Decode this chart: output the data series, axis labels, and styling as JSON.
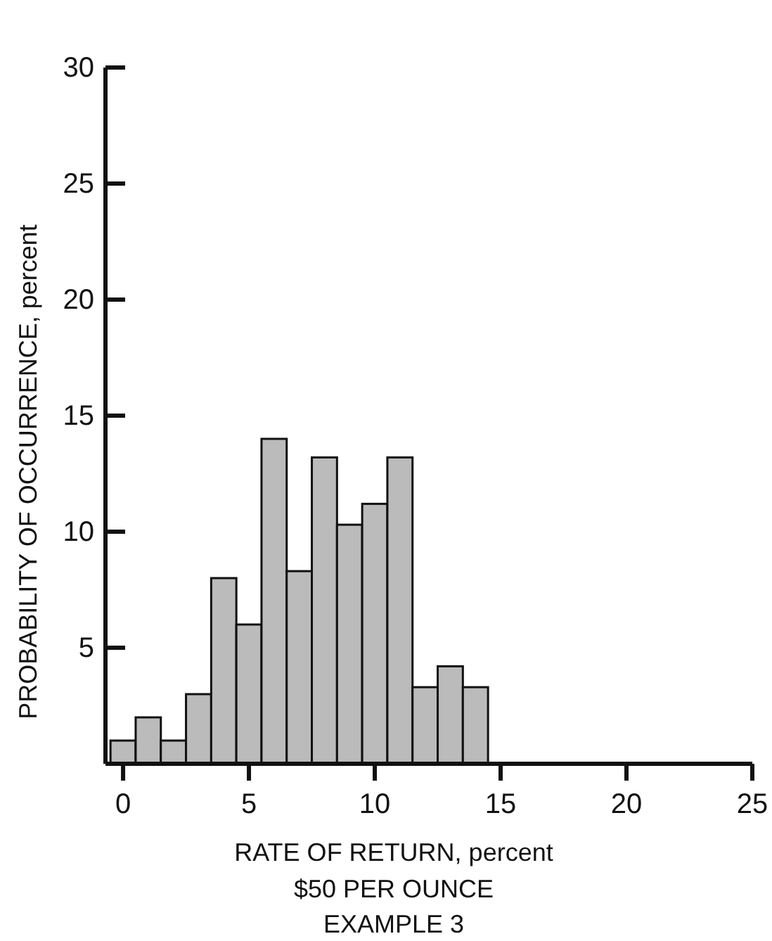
{
  "chart_data": {
    "type": "histogram",
    "xlabel": "RATE OF RETURN, percent",
    "ylabel": "PROBABILITY OF OCCURRENCE, percent",
    "annotations": [
      "$50 PER OUNCE",
      "EXAMPLE 3"
    ],
    "bins": [
      -0.5,
      0.5,
      1.5,
      2.5,
      3.5,
      4.5,
      5.5,
      6.5,
      7.5,
      8.5,
      9.5,
      10.5,
      11.5,
      12.5,
      13.5,
      14.5
    ],
    "values": [
      1,
      2,
      1,
      3,
      8,
      6,
      14,
      8.3,
      13.2,
      10.3,
      11.2,
      13.2,
      3.3,
      4.2,
      3.3
    ],
    "color": "#bbbbbb",
    "xlim": [
      -0.7,
      25
    ],
    "xticks": [
      0,
      5,
      10,
      15,
      20,
      25
    ],
    "ylim": [
      0,
      30
    ],
    "yticks": [
      5,
      10,
      15,
      20,
      25,
      30
    ]
  }
}
